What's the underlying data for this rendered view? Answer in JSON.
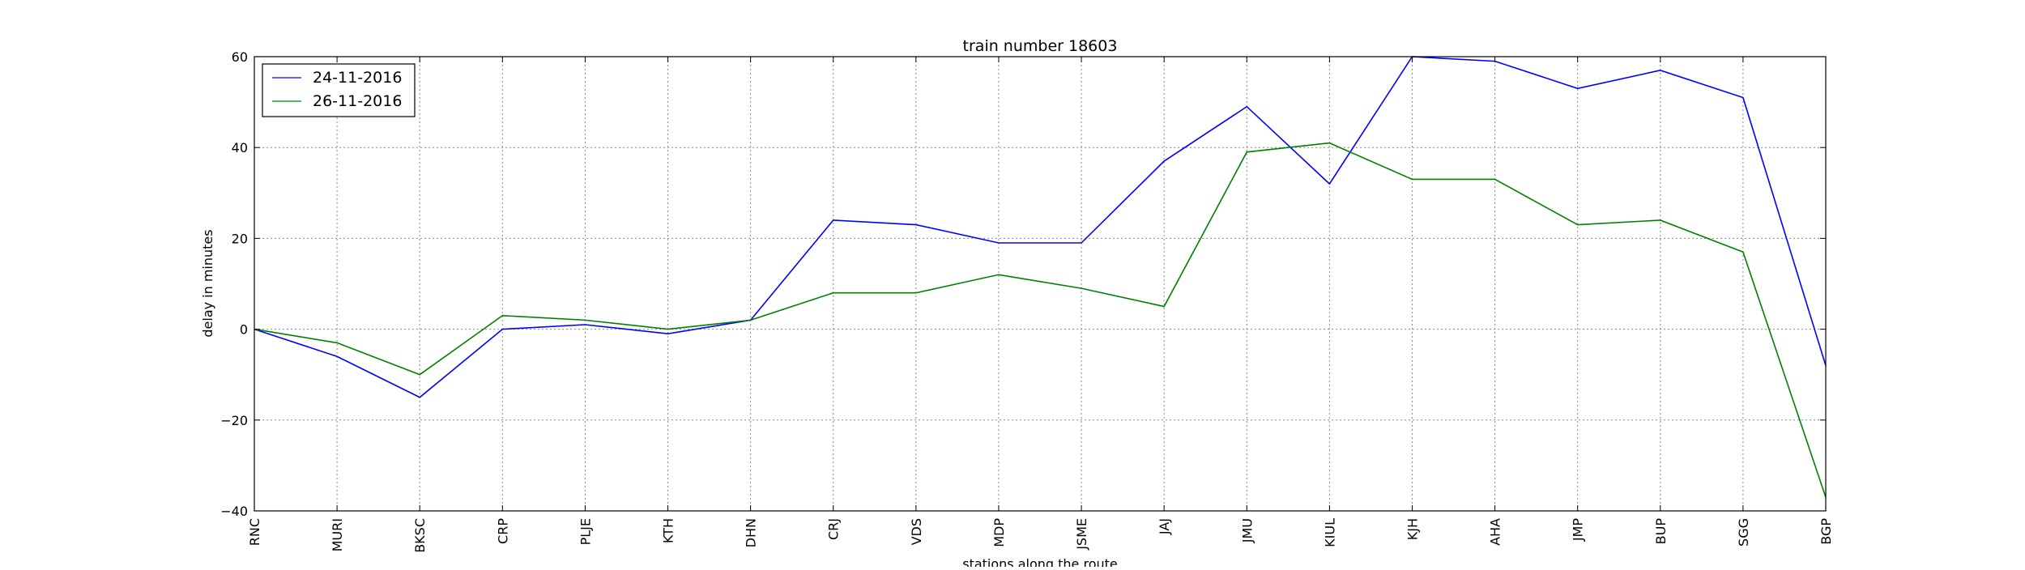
{
  "chart_data": {
    "type": "line",
    "title": "train number 18603",
    "xlabel": "stations along the route",
    "ylabel": "delay in minutes",
    "categories": [
      "RNC",
      "MURI",
      "BKSC",
      "CRP",
      "PLJE",
      "KTH",
      "DHN",
      "CRJ",
      "VDS",
      "MDP",
      "JSME",
      "JAJ",
      "JMU",
      "KIUL",
      "KJH",
      "AHA",
      "JMP",
      "BUP",
      "SGG",
      "BGP"
    ],
    "ylim": [
      -40,
      60
    ],
    "yticks": [
      -40,
      -20,
      0,
      20,
      40,
      60
    ],
    "ytick_labels": [
      "−40",
      "−20",
      "0",
      "20",
      "40",
      "60"
    ],
    "grid": true,
    "legend_position": "top-left",
    "series": [
      {
        "name": "24-11-2016",
        "color": "#0000ff",
        "values": [
          0,
          -6,
          -15,
          0,
          1,
          -1,
          2,
          24,
          23,
          19,
          19,
          37,
          49,
          32,
          60,
          59,
          53,
          57,
          51,
          -8
        ]
      },
      {
        "name": "26-11-2016",
        "color": "#008000",
        "values": [
          0,
          -3,
          -10,
          3,
          2,
          0,
          2,
          8,
          8,
          12,
          9,
          5,
          39,
          41,
          33,
          33,
          23,
          24,
          17,
          -37
        ]
      }
    ]
  }
}
